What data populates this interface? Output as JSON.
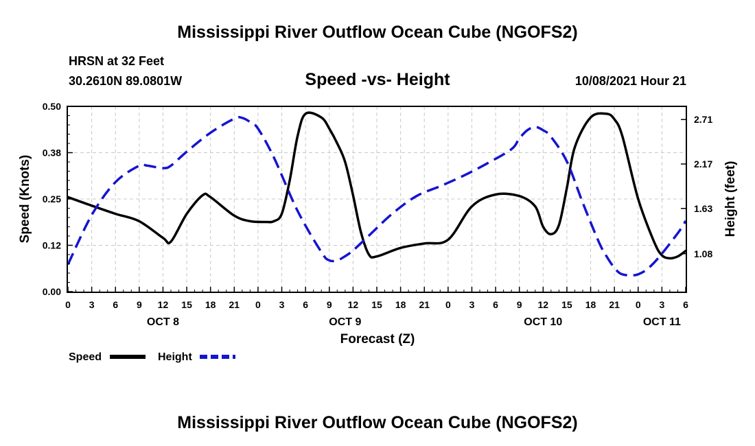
{
  "chart_data": {
    "type": "line",
    "title": "Mississippi River Outflow Ocean Cube (NGOFS2)",
    "footer_title": "Mississippi River Outflow Ocean Cube (NGOFS2)",
    "subtitle": "Speed -vs- Height",
    "station": "HRSN at 32 Feet",
    "coordinates": "30.2610N  89.0801W",
    "date": "10/08/2021 Hour 21",
    "xlabel": "Forecast (Z)",
    "ylabel_left": "Speed (Knots)",
    "ylabel_right": "Height (feet)",
    "x_range": [
      0,
      78
    ],
    "x_tick_step": 3,
    "x_tick_labels": [
      "0",
      "3",
      "6",
      "9",
      "12",
      "15",
      "18",
      "21",
      "0",
      "3",
      "6",
      "9",
      "12",
      "15",
      "18",
      "21",
      "0",
      "3",
      "6",
      "9",
      "12",
      "15",
      "18",
      "21",
      "0",
      "3",
      "6"
    ],
    "day_labels": [
      {
        "label": "OCT 8",
        "x": 12
      },
      {
        "label": "OCT 9",
        "x": 35
      },
      {
        "label": "OCT 10",
        "x": 60
      },
      {
        "label": "OCT 11",
        "x": 75
      }
    ],
    "y_left": {
      "min": 0.0,
      "max": 0.5,
      "ticks": [
        0.0,
        0.125,
        0.25,
        0.375,
        0.5
      ],
      "tick_labels": [
        "0.00",
        "0.12",
        "0.25",
        "0.38",
        "0.50"
      ]
    },
    "y_right": {
      "min": 0.62,
      "max": 2.87,
      "ticks": [
        1.08,
        1.63,
        2.17,
        2.71
      ],
      "tick_labels": [
        "1.08",
        "1.63",
        "2.17",
        "2.71"
      ]
    },
    "grid": true,
    "series": [
      {
        "name": "Speed",
        "axis": "left",
        "color": "#000000",
        "style": "solid",
        "x": [
          0,
          3,
          6,
          9,
          12,
          13,
          15,
          17,
          18,
          21,
          23,
          25,
          26,
          27,
          28,
          29,
          30,
          32,
          33,
          34,
          35,
          36,
          37,
          38,
          39,
          42,
          45,
          48,
          51,
          54,
          57,
          59,
          60,
          61,
          62,
          63,
          64,
          66,
          68,
          69,
          70,
          72,
          74,
          75,
          76,
          77,
          78
        ],
        "y": [
          0.255,
          0.232,
          0.21,
          0.19,
          0.145,
          0.135,
          0.21,
          0.26,
          0.255,
          0.205,
          0.19,
          0.188,
          0.19,
          0.21,
          0.3,
          0.42,
          0.48,
          0.47,
          0.44,
          0.4,
          0.35,
          0.26,
          0.16,
          0.1,
          0.095,
          0.118,
          0.13,
          0.14,
          0.23,
          0.262,
          0.258,
          0.23,
          0.175,
          0.155,
          0.18,
          0.28,
          0.39,
          0.47,
          0.48,
          0.465,
          0.42,
          0.25,
          0.135,
          0.098,
          0.09,
          0.095,
          0.11
        ]
      },
      {
        "name": "Height",
        "axis": "right",
        "color": "#1515d0",
        "style": "dashed",
        "x": [
          0,
          3,
          6,
          9,
          10,
          12,
          13,
          15,
          18,
          21,
          22,
          23,
          24,
          26,
          29,
          32,
          33,
          34,
          35,
          36,
          38,
          41,
          44,
          47,
          50,
          53,
          56,
          57,
          58,
          59,
          60,
          61,
          63,
          65,
          67,
          68,
          69,
          70,
          72,
          74,
          77,
          78
        ],
        "y": [
          0.95,
          1.55,
          1.95,
          2.15,
          2.15,
          2.12,
          2.15,
          2.32,
          2.55,
          2.72,
          2.73,
          2.68,
          2.6,
          2.25,
          1.6,
          1.1,
          1.0,
          1.0,
          1.05,
          1.12,
          1.3,
          1.57,
          1.78,
          1.9,
          2.03,
          2.18,
          2.35,
          2.48,
          2.58,
          2.62,
          2.58,
          2.5,
          2.2,
          1.7,
          1.23,
          1.05,
          0.91,
          0.83,
          0.83,
          0.97,
          1.33,
          1.48
        ]
      }
    ],
    "legend": [
      {
        "label": "Speed",
        "color": "#000000",
        "style": "solid"
      },
      {
        "label": "Height",
        "color": "#1515d0",
        "style": "dashed"
      }
    ],
    "legend_position": "bottom-left"
  }
}
